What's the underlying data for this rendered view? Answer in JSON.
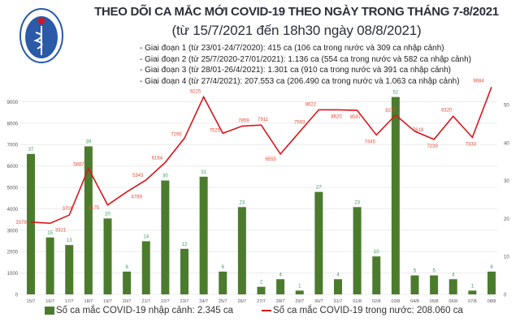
{
  "header": {
    "title": "THEO DÕI CA MẮC MỚI COVID-19 THEO NGÀY TRONG THÁNG 7-8/2021",
    "subtitle": "(từ 15/7/2021 đến 18h30 ngày 08/8/2021)",
    "notes": [
      "- Giai đoạn 1 (từ 23/01-24/7/2020): 415 ca (106 ca trong nước và 309 ca nhập cảnh)",
      "- Giai đoạn 2 (từ 25/7/2020-27/01/2021): 1.136 ca (554 ca trong nước và 582 ca nhập cảnh)",
      "- Giai đoạn 3 (từ 28/01-26/4/2021): 1.301 ca (910 ca trong nước và 391 ca nhập cảnh)",
      "- Giai đoạn 4 (từ 27/4/2021): 207.553 ca (206.490 ca trong nước và 1.063 ca nhập cảnh)"
    ],
    "logo_text": "BỘ Y TẾ · MINISTRY OF HEALTH"
  },
  "colors": {
    "bar": "#4b7c2d",
    "bar_label": "#3d9a63",
    "line": "#d9151c",
    "line_label": "#e0503c",
    "title": "#2b2f3a"
  },
  "chart_data": {
    "type": "bar+line",
    "categories": [
      "15/7",
      "16/7",
      "17/7",
      "18/7",
      "19/7",
      "20/7",
      "21/7",
      "22/7",
      "23/7",
      "24/7",
      "25/7",
      "26/7",
      "27/7",
      "28/7",
      "29/7",
      "30/7",
      "31/7",
      "01/8",
      "02/8",
      "03/8",
      "04/8",
      "05/8",
      "06/8",
      "07/8",
      "08/8"
    ],
    "series": [
      {
        "name": "Số ca mắc COVID-19 nhập cảnh: 2.345 ca",
        "type": "bar",
        "axis": "right",
        "values": [
          37,
          15,
          13,
          39,
          20,
          6,
          14,
          30,
          12,
          31,
          6,
          23,
          2,
          4,
          1,
          27,
          4,
          23,
          10,
          52,
          5,
          5,
          4,
          1,
          6
        ]
      },
      {
        "name": "Số ca mắc COVID-19 trong nước: 208.060 ca",
        "type": "line",
        "axis": "left",
        "values": [
          3379,
          3321,
          3705,
          5887,
          4175,
          4789,
          5343,
          6164,
          7295,
          9225,
          7525,
          7859,
          7911,
          6555,
          7593,
          8622,
          8620,
          8597,
          7445,
          8377,
          7618,
          7239,
          8320,
          7333,
          9684
        ]
      }
    ],
    "left_axis": {
      "ylim": [
        0,
        10000
      ],
      "ticks": [
        0,
        1000,
        2000,
        3000,
        4000,
        5000,
        6000,
        7000,
        8000,
        9000
      ]
    },
    "right_axis": {
      "ylim": [
        0,
        56.4
      ],
      "ticks": [
        0,
        10,
        20,
        30,
        40,
        50
      ]
    },
    "grid": true,
    "legend": "bottom"
  }
}
